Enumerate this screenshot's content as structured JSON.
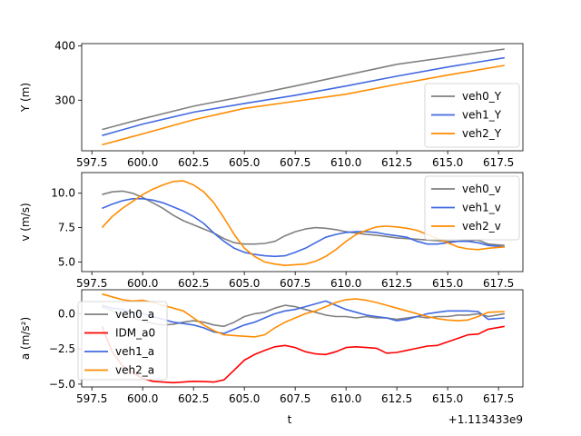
{
  "chart_data": [
    {
      "type": "line",
      "ylabel": "Y (m)",
      "xlim": [
        597.0,
        618.7
      ],
      "ylim": [
        207,
        404
      ],
      "xticks": [
        "597.5",
        "600.0",
        "602.5",
        "605.0",
        "607.5",
        "610.0",
        "612.5",
        "615.0",
        "617.5"
      ],
      "yticks": [
        300,
        400
      ],
      "legend_position": "lower right",
      "series": [
        {
          "name": "veh0_Y",
          "color": "#808080",
          "x": [
            598,
            600,
            602.5,
            605,
            607.5,
            610,
            612.5,
            615,
            617.8
          ],
          "y": [
            246,
            266,
            289,
            307,
            326,
            346,
            366,
            379,
            394
          ]
        },
        {
          "name": "veh1_Y",
          "color": "#4169e1",
          "x": [
            598,
            600,
            602.5,
            605,
            607.5,
            610,
            612.5,
            615,
            617.8
          ],
          "y": [
            235,
            256,
            278,
            294,
            309,
            326,
            344,
            361,
            378
          ]
        },
        {
          "name": "veh2_Y",
          "color": "#ff8c00",
          "x": [
            598,
            600,
            602.5,
            605,
            607.5,
            610,
            612.5,
            615,
            617.8
          ],
          "y": [
            218,
            238,
            264,
            285,
            298,
            311,
            329,
            346,
            364
          ]
        }
      ]
    },
    {
      "type": "line",
      "ylabel": "v (m/s)",
      "xlim": [
        597.0,
        618.7
      ],
      "ylim": [
        4.3,
        11.5
      ],
      "xticks": [
        "597.5",
        "600.0",
        "602.5",
        "605.0",
        "607.5",
        "610.0",
        "612.5",
        "615.0",
        "617.5"
      ],
      "yticks": [
        "5.0",
        "7.5",
        "10.0"
      ],
      "legend_position": "upper right",
      "series": [
        {
          "name": "veh0_v",
          "color": "#808080",
          "x": [
            598,
            598.5,
            599,
            599.5,
            600,
            600.5,
            601,
            601.5,
            602,
            602.5,
            603,
            603.5,
            604,
            604.5,
            605,
            605.5,
            606,
            606.5,
            607,
            607.5,
            608,
            608.5,
            609,
            609.5,
            610,
            610.5,
            611,
            611.5,
            612,
            612.5,
            613,
            613.5,
            614,
            614.5,
            615,
            615.5,
            616,
            616.5,
            617,
            617.8
          ],
          "y": [
            9.9,
            10.1,
            10.15,
            10.0,
            9.7,
            9.3,
            8.9,
            8.4,
            8.0,
            7.7,
            7.4,
            7.1,
            6.7,
            6.4,
            6.3,
            6.3,
            6.35,
            6.5,
            6.9,
            7.2,
            7.4,
            7.5,
            7.45,
            7.35,
            7.2,
            7.1,
            7.0,
            6.95,
            6.85,
            6.75,
            6.7,
            6.65,
            6.6,
            6.55,
            6.5,
            6.5,
            6.55,
            6.6,
            6.3,
            6.2
          ]
        },
        {
          "name": "veh1_v",
          "color": "#4169e1",
          "x": [
            598,
            598.5,
            599,
            599.5,
            600,
            600.5,
            601,
            601.5,
            602,
            602.5,
            603,
            603.5,
            604,
            604.5,
            605,
            605.5,
            606,
            606.5,
            607,
            607.5,
            608,
            608.5,
            609,
            609.5,
            610,
            610.5,
            611,
            611.5,
            612,
            612.5,
            613,
            613.5,
            614,
            614.5,
            615,
            615.5,
            616,
            616.5,
            617,
            617.8
          ],
          "y": [
            8.9,
            9.2,
            9.45,
            9.6,
            9.6,
            9.5,
            9.3,
            9.0,
            8.7,
            8.3,
            7.8,
            7.1,
            6.5,
            6.0,
            5.7,
            5.55,
            5.45,
            5.4,
            5.45,
            5.7,
            6.0,
            6.4,
            6.8,
            7.0,
            7.15,
            7.2,
            7.2,
            7.15,
            7.0,
            6.9,
            6.8,
            6.5,
            6.3,
            6.3,
            6.4,
            6.5,
            6.5,
            6.4,
            6.2,
            6.1
          ]
        },
        {
          "name": "veh2_v",
          "color": "#ff8c00",
          "x": [
            598,
            598.5,
            599,
            599.5,
            600,
            600.5,
            601,
            601.5,
            602,
            602.5,
            603,
            603.5,
            604,
            604.5,
            605,
            605.5,
            606,
            606.5,
            607,
            607.5,
            608,
            608.5,
            609,
            609.5,
            610,
            610.5,
            611,
            611.5,
            612,
            612.5,
            613,
            613.5,
            614,
            614.5,
            615,
            615.5,
            616,
            616.5,
            617,
            617.8
          ],
          "y": [
            7.5,
            8.3,
            8.9,
            9.4,
            9.9,
            10.3,
            10.6,
            10.85,
            10.9,
            10.6,
            10.1,
            9.3,
            8.2,
            7.0,
            6.0,
            5.4,
            5.0,
            4.85,
            4.75,
            4.8,
            4.85,
            5.05,
            5.4,
            5.9,
            6.5,
            7.0,
            7.3,
            7.55,
            7.6,
            7.55,
            7.45,
            7.3,
            7.0,
            6.7,
            6.4,
            6.1,
            5.95,
            5.9,
            6.0,
            6.1
          ]
        }
      ]
    },
    {
      "type": "line",
      "ylabel": "a (m/s²)",
      "xlabel": "t",
      "x_offset_label": "+1.113433e9",
      "xlim": [
        597.0,
        618.7
      ],
      "ylim": [
        -5.2,
        1.7
      ],
      "xticks": [
        "597.5",
        "600.0",
        "602.5",
        "605.0",
        "607.5",
        "610.0",
        "612.5",
        "615.0",
        "617.5"
      ],
      "yticks": [
        "−5.0",
        "−2.5",
        "0.0"
      ],
      "legend_position": "upper left",
      "series": [
        {
          "name": "veh0_a",
          "color": "#808080",
          "x": [
            598,
            598.5,
            599,
            599.5,
            600,
            600.5,
            601,
            601.5,
            602,
            602.5,
            603,
            603.5,
            604,
            604.5,
            605,
            605.5,
            606,
            606.5,
            607,
            607.5,
            608,
            608.5,
            609,
            609.5,
            610,
            610.5,
            611,
            611.5,
            612,
            612.5,
            613,
            613.5,
            614,
            614.5,
            615,
            615.5,
            616,
            616.5,
            617,
            617.8
          ],
          "y": [
            0.5,
            0.2,
            -0.1,
            -0.3,
            -0.5,
            -0.7,
            -0.8,
            -0.75,
            -0.6,
            -0.5,
            -0.6,
            -0.8,
            -0.9,
            -0.6,
            -0.2,
            0.0,
            0.1,
            0.4,
            0.6,
            0.5,
            0.3,
            0.1,
            -0.1,
            -0.2,
            -0.2,
            -0.3,
            -0.2,
            -0.3,
            -0.3,
            -0.4,
            -0.3,
            -0.2,
            -0.3,
            -0.2,
            -0.2,
            -0.1,
            -0.1,
            0.0,
            -0.2,
            0.0
          ]
        },
        {
          "name": "IDM_a0",
          "color": "#ff0000",
          "x": [
            598,
            598.5,
            599,
            599.5,
            600,
            600.5,
            601,
            601.5,
            602,
            602.5,
            603,
            603.5,
            604,
            604.5,
            605,
            605.5,
            606,
            606.5,
            607,
            607.5,
            608,
            608.5,
            609,
            609.5,
            610,
            610.5,
            611,
            611.5,
            612,
            612.5,
            613,
            613.5,
            614,
            614.5,
            615,
            615.5,
            616,
            616.5,
            617,
            617.8
          ],
          "y": [
            -0.9,
            -2.7,
            -3.7,
            -4.2,
            -4.6,
            -4.8,
            -4.85,
            -4.9,
            -4.85,
            -4.8,
            -4.82,
            -4.85,
            -4.7,
            -4.0,
            -3.3,
            -2.9,
            -2.6,
            -2.35,
            -2.25,
            -2.4,
            -2.7,
            -2.85,
            -2.9,
            -2.7,
            -2.4,
            -2.35,
            -2.4,
            -2.45,
            -2.8,
            -2.75,
            -2.6,
            -2.45,
            -2.3,
            -2.25,
            -2.0,
            -1.75,
            -1.5,
            -1.45,
            -1.1,
            -0.9
          ]
        },
        {
          "name": "veh1_a",
          "color": "#4169e1",
          "x": [
            598,
            598.5,
            599,
            599.5,
            600,
            600.5,
            601,
            601.5,
            602,
            602.5,
            603,
            603.5,
            604,
            604.5,
            605,
            605.5,
            606,
            606.5,
            607,
            607.5,
            608,
            608.5,
            609,
            609.5,
            610,
            610.5,
            611,
            611.5,
            612,
            612.5,
            613,
            613.5,
            614,
            614.5,
            615,
            615.5,
            616,
            616.5,
            617,
            617.8
          ],
          "y": [
            0.6,
            0.4,
            0.3,
            0.1,
            0.0,
            -0.2,
            -0.4,
            -0.6,
            -0.7,
            -0.8,
            -1.0,
            -1.3,
            -1.4,
            -1.1,
            -0.8,
            -0.6,
            -0.3,
            0.0,
            0.2,
            0.3,
            0.5,
            0.7,
            0.9,
            0.6,
            0.3,
            0.1,
            -0.1,
            -0.2,
            -0.3,
            -0.5,
            -0.4,
            -0.2,
            0.0,
            0.1,
            0.2,
            0.2,
            0.2,
            0.15,
            -0.4,
            -0.3
          ]
        },
        {
          "name": "veh2_a",
          "color": "#ff8c00",
          "x": [
            598,
            598.5,
            599,
            599.5,
            600,
            600.5,
            601,
            601.5,
            602,
            602.5,
            603,
            603.5,
            604,
            604.5,
            605,
            605.5,
            606,
            606.5,
            607,
            607.5,
            608,
            608.5,
            609,
            609.5,
            610,
            610.5,
            611,
            611.5,
            612,
            612.5,
            613,
            613.5,
            614,
            614.5,
            615,
            615.5,
            616,
            616.5,
            617,
            617.8
          ],
          "y": [
            1.4,
            1.2,
            1.0,
            0.9,
            0.95,
            0.8,
            0.6,
            0.4,
            0.2,
            -0.3,
            -0.8,
            -1.2,
            -1.5,
            -1.55,
            -1.6,
            -1.65,
            -1.5,
            -1.0,
            -0.6,
            -0.3,
            0.0,
            0.2,
            0.5,
            0.8,
            1.0,
            1.05,
            0.95,
            0.8,
            0.6,
            0.4,
            0.2,
            0.0,
            -0.2,
            -0.35,
            -0.45,
            -0.5,
            -0.45,
            -0.2,
            0.1,
            0.15
          ]
        }
      ]
    }
  ]
}
